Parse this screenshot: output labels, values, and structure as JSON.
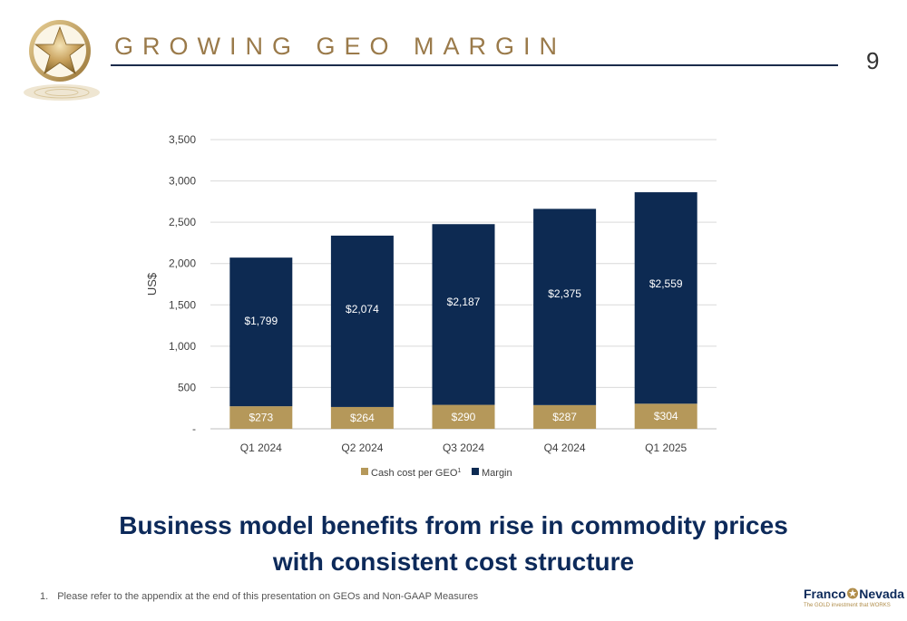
{
  "slide": {
    "title": "GROWING GEO MARGIN",
    "page_number": "9",
    "tagline_line1": "Business model benefits from rise in commodity prices",
    "tagline_line2": "with consistent cost structure",
    "footnote_number": "1.",
    "footnote_text": "Please refer to the appendix at the end of this presentation on GEOs and Non-GAAP Measures"
  },
  "brand": {
    "name_left": "Franco",
    "name_right": "Nevada",
    "tagline": "The GOLD investment that WORKS",
    "colors": {
      "navy": "#0d2a5a",
      "gold": "#b08d4a"
    }
  },
  "chart_data": {
    "type": "bar",
    "stacked": true,
    "categories": [
      "Q1 2024",
      "Q2 2024",
      "Q3 2024",
      "Q4 2024",
      "Q1 2025"
    ],
    "series": [
      {
        "name": "Cash cost per GEO",
        "name_superscript": "1",
        "color": "#b5985a",
        "values": [
          273,
          264,
          290,
          287,
          304
        ],
        "labels": [
          "$273",
          "$264",
          "$290",
          "$287",
          "$304"
        ]
      },
      {
        "name": "Margin",
        "color": "#0d2a52",
        "values": [
          1799,
          2074,
          2187,
          2375,
          2559
        ],
        "labels": [
          "$1,799",
          "$2,074",
          "$2,187",
          "$2,375",
          "$2,559"
        ]
      }
    ],
    "ylabel": "US$",
    "xlabel": "",
    "ylim": [
      0,
      3500
    ],
    "yticks": [
      0,
      500,
      1000,
      1500,
      2000,
      2500,
      3000,
      3500
    ],
    "ytick_labels": [
      "-",
      "500",
      "1,000",
      "1,500",
      "2,000",
      "2,500",
      "3,000",
      "3,500"
    ],
    "grid": true,
    "legend_position": "bottom"
  }
}
